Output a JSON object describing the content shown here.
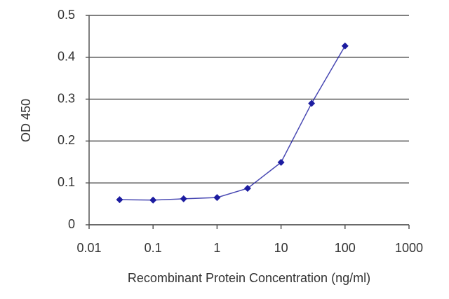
{
  "chart_data": {
    "type": "line",
    "xlabel": "Recombinant Protein Concentration (ng/ml)",
    "ylabel": "OD 450",
    "x": [
      0.03,
      0.1,
      0.3,
      1,
      3,
      10,
      30,
      100
    ],
    "series": [
      {
        "color": "#1c1ca0",
        "values": [
          0.06,
          0.059,
          0.062,
          0.065,
          0.087,
          0.149,
          0.29,
          0.427
        ]
      }
    ],
    "xscale": "log",
    "xlim": [
      0.01,
      1000
    ],
    "xticks": [
      0.01,
      0.1,
      1,
      10,
      100,
      1000
    ],
    "ylim": [
      0,
      0.5
    ],
    "yticks": [
      0,
      0.1,
      0.2,
      0.3,
      0.4,
      0.5
    ],
    "grid": true
  }
}
